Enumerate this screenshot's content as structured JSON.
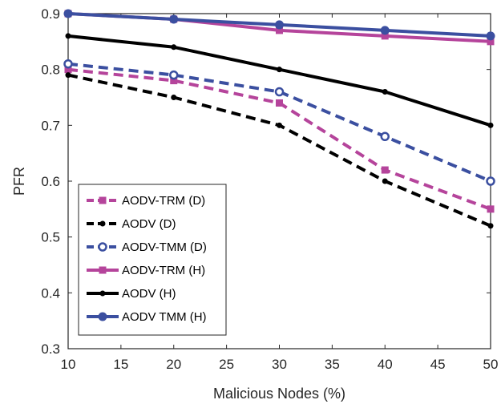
{
  "chart_data": {
    "type": "line",
    "title": "",
    "xlabel": "Malicious Nodes (%)",
    "ylabel": "PFR",
    "x": [
      10,
      20,
      30,
      40,
      50
    ],
    "xlim": [
      10,
      50
    ],
    "ylim": [
      0.3,
      0.9
    ],
    "xticks": [
      "10",
      "15",
      "20",
      "25",
      "30",
      "35",
      "40",
      "45",
      "50"
    ],
    "yticks": [
      "0.3",
      "0.4",
      "0.5",
      "0.6",
      "0.7",
      "0.8",
      "0.9"
    ],
    "grid": false,
    "legend_position": "bottom-left",
    "series": [
      {
        "name": "AODV-TRM (D)",
        "values": [
          0.8,
          0.78,
          0.74,
          0.62,
          0.55
        ],
        "color": "#b5449b",
        "dash": "dashed",
        "marker": "square"
      },
      {
        "name": "AODV (D)",
        "values": [
          0.79,
          0.75,
          0.7,
          0.6,
          0.52
        ],
        "color": "#000000",
        "dash": "dashed",
        "marker": "dot"
      },
      {
        "name": "AODV-TMM (D)",
        "values": [
          0.81,
          0.79,
          0.76,
          0.68,
          0.6
        ],
        "color": "#3b4fa0",
        "dash": "dashed",
        "marker": "circle-open"
      },
      {
        "name": "AODV-TRM (H)",
        "values": [
          0.9,
          0.89,
          0.87,
          0.86,
          0.85
        ],
        "color": "#b5449b",
        "dash": "solid",
        "marker": "square"
      },
      {
        "name": "AODV (H)",
        "values": [
          0.86,
          0.84,
          0.8,
          0.76,
          0.7
        ],
        "color": "#000000",
        "dash": "solid",
        "marker": "dot"
      },
      {
        "name": "AODV TMM (H)",
        "values": [
          0.9,
          0.89,
          0.88,
          0.87,
          0.86
        ],
        "color": "#3b4fa0",
        "dash": "solid",
        "marker": "circle"
      }
    ]
  }
}
